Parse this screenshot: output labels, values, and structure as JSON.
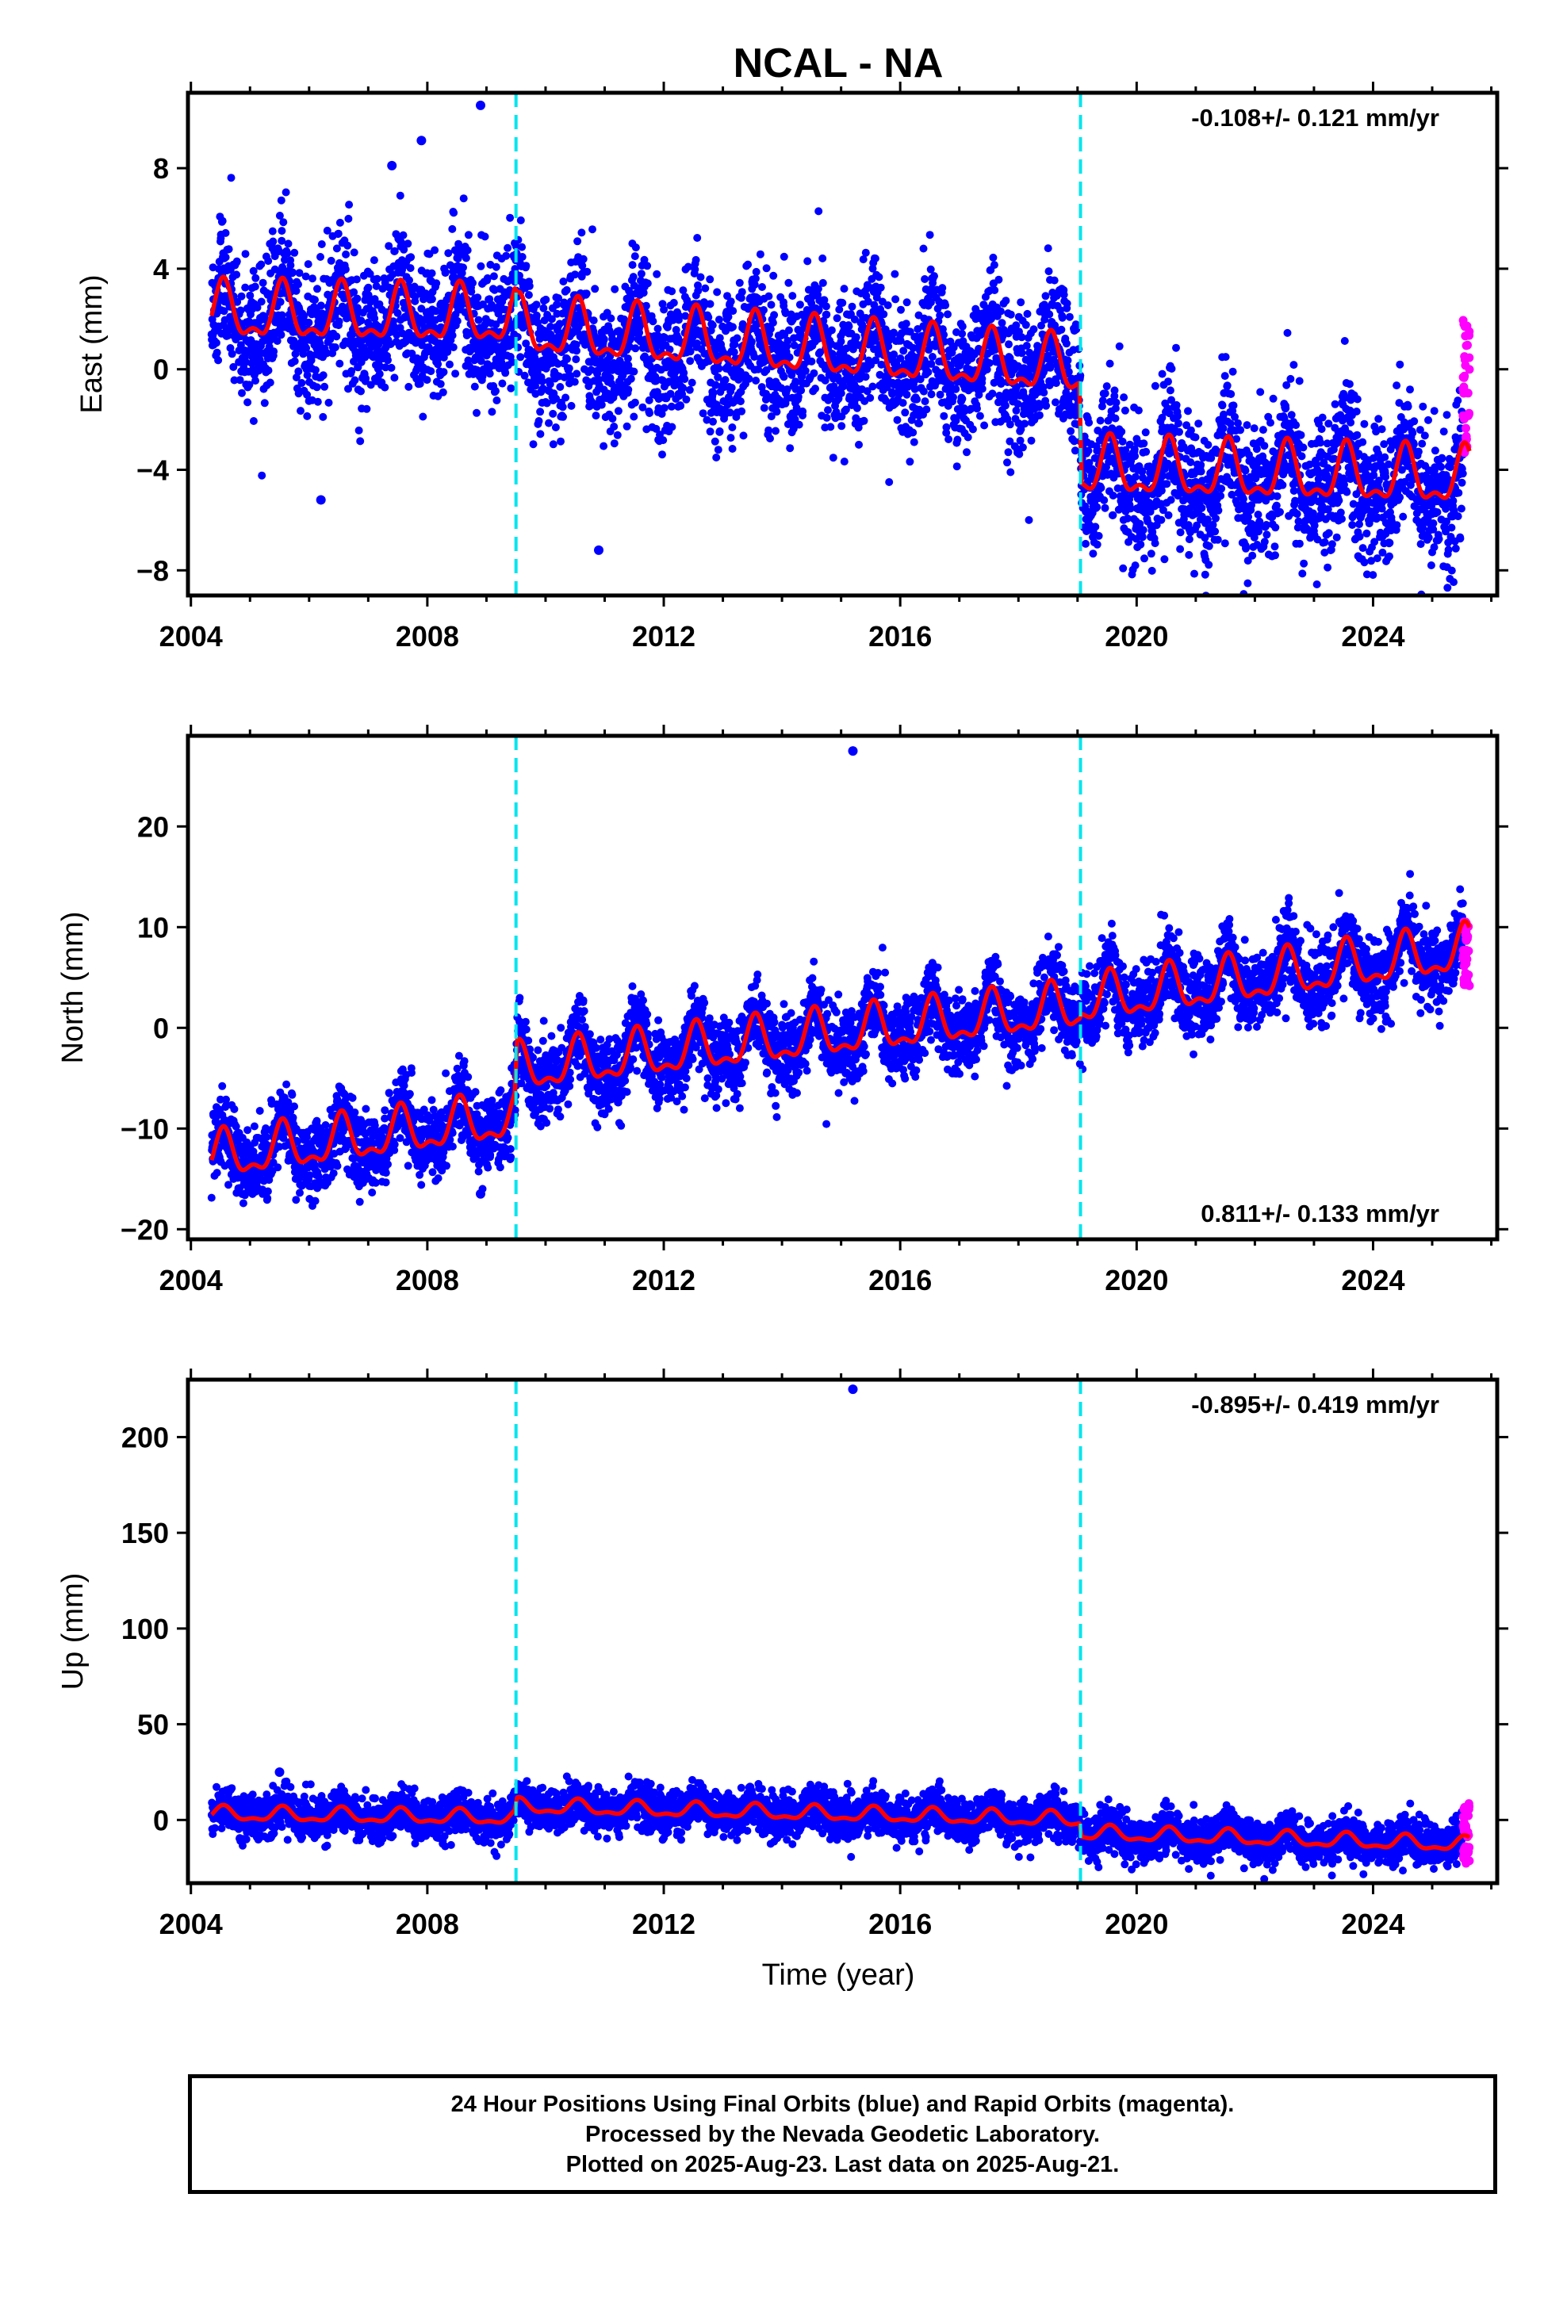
{
  "chart_data": {
    "type": "scatter",
    "title": "NCAL - NA",
    "xlabel": "Time (year)",
    "x_ticks": [
      2004,
      2008,
      2012,
      2016,
      2020,
      2024
    ],
    "xlim": [
      2003.95,
      2026.1
    ],
    "step_epochs": [
      2009.5,
      2019.05
    ],
    "colors": {
      "final": "#0000ff",
      "rapid": "#ff00ff",
      "model": "#ff0000",
      "steps": "#00e5ee"
    },
    "panels": [
      {
        "name": "East",
        "ylabel": "East (mm)",
        "rate": "-0.108+/- 0.121 mm/yr",
        "ylim": [
          -9,
          11
        ],
        "yticks": [
          -8,
          -4,
          0,
          4,
          8
        ],
        "outliers": [
          [
            2008.9,
            10.5
          ],
          [
            2007.4,
            8.1
          ],
          [
            2007.9,
            9.1
          ],
          [
            2010.9,
            -7.2
          ],
          [
            2006.2,
            -5.2
          ]
        ],
        "series": [
          {
            "name": "Final Orbits",
            "x_range": [
              2004.35,
              2025.52
            ],
            "pattern": [
              [
                2004.35,
                2.0
              ],
              [
                2009.48,
                2.0
              ],
              [
                2009.52,
                1.2
              ],
              [
                2019.03,
                0.0
              ],
              [
                2019.07,
                -4.2
              ],
              [
                2025.52,
                -4.5
              ]
            ],
            "noise_mm": 1.4,
            "samples": 5200
          },
          {
            "name": "Rapid Orbits",
            "x_range": [
              2025.52,
              2025.63
            ],
            "y_range": [
              -3.5,
              2.0
            ],
            "samples": 40
          },
          {
            "name": "Model",
            "pattern": [
              [
                2004.35,
                2.2
              ],
              [
                2009.48,
                2.0
              ],
              [
                2009.52,
                1.6
              ],
              [
                2019.03,
                0.0
              ],
              [
                2019.07,
                -4.0
              ],
              [
                2025.63,
                -4.4
              ]
            ],
            "seasonal_amp": 1.35
          }
        ]
      },
      {
        "name": "North",
        "ylabel": "North (mm)",
        "rate": "0.811+/- 0.133 mm/yr",
        "ylim": [
          -21,
          29
        ],
        "yticks": [
          -20,
          -10,
          0,
          10,
          20
        ],
        "outliers": [
          [
            2015.2,
            27.5
          ],
          [
            2008.9,
            -16.5
          ]
        ],
        "series": [
          {
            "name": "Final Orbits",
            "x_range": [
              2004.35,
              2025.52
            ],
            "pattern": [
              [
                2004.35,
                -13.0
              ],
              [
                2009.48,
                -9.0
              ],
              [
                2009.52,
                -4.2
              ],
              [
                2019.03,
                2.0
              ],
              [
                2019.07,
                2.5
              ],
              [
                2025.52,
                7.5
              ]
            ],
            "noise_mm": 1.9,
            "samples": 5200
          },
          {
            "name": "Rapid Orbits",
            "x_range": [
              2025.52,
              2025.63
            ],
            "y_range": [
              4.0,
              11.0
            ],
            "samples": 40
          },
          {
            "name": "Model",
            "pattern": [
              [
                2004.35,
                -13.0
              ],
              [
                2009.48,
                -9.0
              ],
              [
                2009.52,
                -4.2
              ],
              [
                2019.03,
                2.0
              ],
              [
                2019.07,
                2.5
              ],
              [
                2025.63,
                7.6
              ]
            ],
            "seasonal_amp": 2.8
          }
        ]
      },
      {
        "name": "Up",
        "ylabel": "Up (mm)",
        "rate": "-0.895+/- 0.419 mm/yr",
        "ylim": [
          -33,
          230
        ],
        "yticks": [
          0,
          50,
          100,
          150,
          200
        ],
        "outliers": [
          [
            2015.2,
            225.0
          ],
          [
            2005.5,
            25.0
          ]
        ],
        "series": [
          {
            "name": "Final Orbits",
            "x_range": [
              2004.35,
              2025.52
            ],
            "pattern": [
              [
                2004.35,
                3.0
              ],
              [
                2009.48,
                1.0
              ],
              [
                2009.52,
                7.0
              ],
              [
                2019.03,
                0.0
              ],
              [
                2019.07,
                -7.0
              ],
              [
                2025.52,
                -13.0
              ]
            ],
            "noise_mm": 5.5,
            "samples": 5200
          },
          {
            "name": "Rapid Orbits",
            "x_range": [
              2025.52,
              2025.63
            ],
            "y_range": [
              -23.0,
              9.0
            ],
            "samples": 40
          },
          {
            "name": "Model",
            "pattern": [
              [
                2004.35,
                3.0
              ],
              [
                2009.48,
                1.0
              ],
              [
                2009.52,
                7.0
              ],
              [
                2019.03,
                0.0
              ],
              [
                2019.07,
                -7.0
              ],
              [
                2025.63,
                -13.0
              ]
            ],
            "seasonal_amp": 4.5
          }
        ]
      }
    ]
  },
  "footer": {
    "line1": "24 Hour Positions Using Final Orbits (blue) and Rapid Orbits (magenta).",
    "line2": "Processed by the Nevada Geodetic Laboratory.",
    "line3": "Plotted on 2025-Aug-23. Last data on 2025-Aug-21."
  }
}
